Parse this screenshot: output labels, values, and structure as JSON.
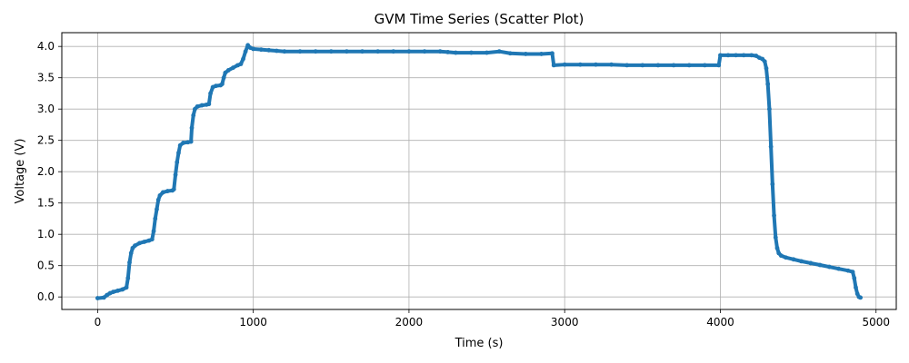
{
  "chart_data": {
    "type": "scatter",
    "title": "GVM Time Series (Scatter Plot)",
    "xlabel": "Time (s)",
    "ylabel": "Voltage (V)",
    "xlim": [
      -230,
      5130
    ],
    "ylim": [
      -0.2,
      4.22
    ],
    "xticks": [
      0,
      1000,
      2000,
      3000,
      4000,
      5000
    ],
    "xtick_labels": [
      "0",
      "1000",
      "2000",
      "3000",
      "4000",
      "5000"
    ],
    "yticks": [
      0.0,
      0.5,
      1.0,
      1.5,
      2.0,
      2.5,
      3.0,
      3.5,
      4.0
    ],
    "ytick_labels": [
      "0.0",
      "0.5",
      "1.0",
      "1.5",
      "2.0",
      "2.5",
      "3.0",
      "3.5",
      "4.0"
    ],
    "grid": true,
    "series": [
      {
        "color": "#1f77b4",
        "points": [
          [
            0,
            -0.02
          ],
          [
            40,
            -0.01
          ],
          [
            60,
            0.03
          ],
          [
            80,
            0.06
          ],
          [
            100,
            0.08
          ],
          [
            130,
            0.1
          ],
          [
            160,
            0.12
          ],
          [
            185,
            0.15
          ],
          [
            195,
            0.3
          ],
          [
            205,
            0.55
          ],
          [
            215,
            0.7
          ],
          [
            225,
            0.78
          ],
          [
            240,
            0.82
          ],
          [
            270,
            0.86
          ],
          [
            300,
            0.88
          ],
          [
            330,
            0.9
          ],
          [
            350,
            0.92
          ],
          [
            360,
            1.05
          ],
          [
            370,
            1.25
          ],
          [
            380,
            1.4
          ],
          [
            390,
            1.55
          ],
          [
            400,
            1.62
          ],
          [
            420,
            1.67
          ],
          [
            450,
            1.69
          ],
          [
            480,
            1.7
          ],
          [
            490,
            1.72
          ],
          [
            500,
            1.95
          ],
          [
            510,
            2.15
          ],
          [
            520,
            2.3
          ],
          [
            530,
            2.42
          ],
          [
            550,
            2.46
          ],
          [
            580,
            2.47
          ],
          [
            600,
            2.48
          ],
          [
            605,
            2.7
          ],
          [
            615,
            2.9
          ],
          [
            625,
            3.0
          ],
          [
            640,
            3.04
          ],
          [
            670,
            3.06
          ],
          [
            700,
            3.07
          ],
          [
            715,
            3.08
          ],
          [
            725,
            3.25
          ],
          [
            740,
            3.35
          ],
          [
            760,
            3.37
          ],
          [
            790,
            3.38
          ],
          [
            800,
            3.4
          ],
          [
            810,
            3.5
          ],
          [
            820,
            3.58
          ],
          [
            840,
            3.62
          ],
          [
            870,
            3.66
          ],
          [
            900,
            3.7
          ],
          [
            920,
            3.72
          ],
          [
            935,
            3.8
          ],
          [
            950,
            3.92
          ],
          [
            965,
            4.02
          ],
          [
            980,
            3.98
          ],
          [
            1000,
            3.96
          ],
          [
            1050,
            3.95
          ],
          [
            1100,
            3.94
          ],
          [
            1150,
            3.93
          ],
          [
            1200,
            3.92
          ],
          [
            1300,
            3.92
          ],
          [
            1400,
            3.92
          ],
          [
            1500,
            3.92
          ],
          [
            1600,
            3.92
          ],
          [
            1700,
            3.92
          ],
          [
            1800,
            3.92
          ],
          [
            1900,
            3.92
          ],
          [
            2000,
            3.92
          ],
          [
            2100,
            3.92
          ],
          [
            2200,
            3.92
          ],
          [
            2250,
            3.91
          ],
          [
            2300,
            3.9
          ],
          [
            2400,
            3.9
          ],
          [
            2500,
            3.9
          ],
          [
            2580,
            3.92
          ],
          [
            2650,
            3.89
          ],
          [
            2750,
            3.88
          ],
          [
            2850,
            3.88
          ],
          [
            2920,
            3.89
          ],
          [
            2930,
            3.7
          ],
          [
            3000,
            3.71
          ],
          [
            3100,
            3.71
          ],
          [
            3200,
            3.71
          ],
          [
            3300,
            3.71
          ],
          [
            3400,
            3.7
          ],
          [
            3500,
            3.7
          ],
          [
            3600,
            3.7
          ],
          [
            3700,
            3.7
          ],
          [
            3800,
            3.7
          ],
          [
            3900,
            3.7
          ],
          [
            3990,
            3.7
          ],
          [
            4000,
            3.86
          ],
          [
            4050,
            3.86
          ],
          [
            4100,
            3.86
          ],
          [
            4150,
            3.86
          ],
          [
            4200,
            3.86
          ],
          [
            4230,
            3.85
          ],
          [
            4250,
            3.82
          ],
          [
            4270,
            3.8
          ],
          [
            4285,
            3.76
          ],
          [
            4295,
            3.65
          ],
          [
            4305,
            3.4
          ],
          [
            4315,
            3.0
          ],
          [
            4325,
            2.4
          ],
          [
            4335,
            1.8
          ],
          [
            4345,
            1.3
          ],
          [
            4355,
            0.95
          ],
          [
            4365,
            0.78
          ],
          [
            4375,
            0.7
          ],
          [
            4390,
            0.66
          ],
          [
            4420,
            0.63
          ],
          [
            4470,
            0.6
          ],
          [
            4520,
            0.57
          ],
          [
            4580,
            0.54
          ],
          [
            4640,
            0.51
          ],
          [
            4700,
            0.48
          ],
          [
            4760,
            0.45
          ],
          [
            4820,
            0.42
          ],
          [
            4850,
            0.4
          ],
          [
            4860,
            0.3
          ],
          [
            4870,
            0.15
          ],
          [
            4880,
            0.05
          ],
          [
            4890,
            0.0
          ],
          [
            4900,
            -0.01
          ]
        ]
      }
    ]
  }
}
